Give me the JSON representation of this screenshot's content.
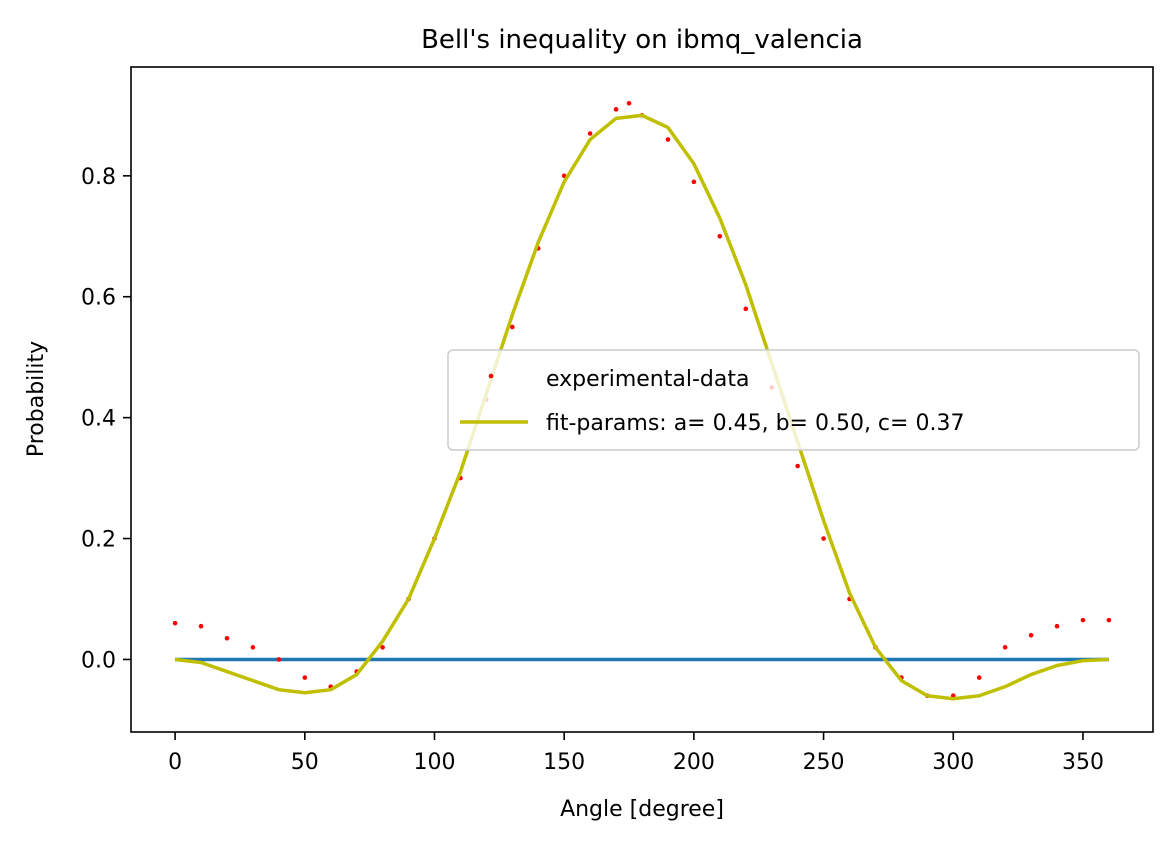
{
  "chart_data": {
    "type": "scatter",
    "title": "Bell's inequality on ibmq_valencia",
    "xlabel": "Angle [degree]",
    "ylabel": "Probability",
    "xlim": [
      -17,
      377
    ],
    "ylim": [
      -0.12,
      0.98
    ],
    "xticks": [
      0,
      50,
      100,
      150,
      200,
      250,
      300,
      350
    ],
    "yticks": [
      0.0,
      0.2,
      0.4,
      0.6,
      0.8
    ],
    "xtick_labels": [
      "0",
      "50",
      "100",
      "150",
      "200",
      "250",
      "300",
      "350"
    ],
    "ytick_labels": [
      "0.0",
      "0.2",
      "0.4",
      "0.6",
      "0.8"
    ],
    "grid": false,
    "legend_position": "center-right",
    "colors": {
      "data": "#ff0000",
      "fit": "#bfbf00",
      "zero_line": "#1f77b4"
    },
    "series": [
      {
        "name": "experimental-data",
        "kind": "scatter",
        "x": [
          0,
          10,
          20,
          30,
          40,
          50,
          60,
          70,
          80,
          90,
          100,
          110,
          120,
          130,
          140,
          150,
          160,
          170,
          175,
          180,
          190,
          200,
          210,
          220,
          230,
          240,
          250,
          260,
          270,
          280,
          290,
          300,
          310,
          320,
          330,
          340,
          350,
          360
        ],
        "y": [
          0.06,
          0.055,
          0.035,
          0.02,
          0.0,
          -0.03,
          -0.045,
          -0.02,
          0.02,
          0.1,
          0.2,
          0.3,
          0.43,
          0.55,
          0.68,
          0.8,
          0.87,
          0.91,
          0.92,
          0.9,
          0.86,
          0.79,
          0.7,
          0.58,
          0.45,
          0.32,
          0.2,
          0.1,
          0.02,
          -0.03,
          -0.06,
          -0.06,
          -0.03,
          0.02,
          0.04,
          0.055,
          0.065,
          0.065
        ]
      },
      {
        "name": "fit-params: a= 0.45, b= 0.50, c= 0.37",
        "kind": "line",
        "x": [
          0,
          10,
          20,
          30,
          40,
          50,
          60,
          70,
          80,
          90,
          100,
          110,
          120,
          130,
          140,
          150,
          160,
          170,
          180,
          190,
          200,
          210,
          220,
          230,
          240,
          250,
          260,
          270,
          280,
          290,
          300,
          310,
          320,
          330,
          340,
          350,
          360
        ],
        "y": [
          0.0,
          -0.005,
          -0.02,
          -0.035,
          -0.05,
          -0.055,
          -0.05,
          -0.025,
          0.03,
          0.1,
          0.2,
          0.31,
          0.44,
          0.57,
          0.69,
          0.79,
          0.86,
          0.895,
          0.9,
          0.88,
          0.82,
          0.73,
          0.62,
          0.49,
          0.36,
          0.23,
          0.11,
          0.02,
          -0.035,
          -0.06,
          -0.065,
          -0.06,
          -0.045,
          -0.025,
          -0.01,
          -0.002,
          0.0
        ]
      },
      {
        "kind": "line",
        "x": [
          0,
          360
        ],
        "y": [
          0.0,
          0.0
        ]
      }
    ]
  }
}
